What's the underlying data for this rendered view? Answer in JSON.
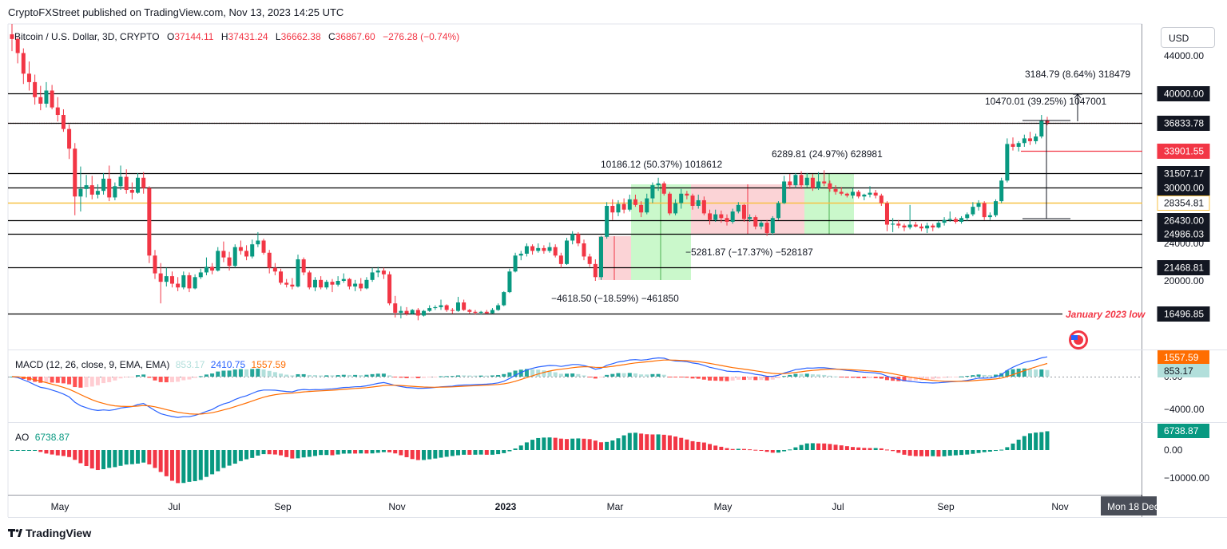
{
  "header": {
    "published": "CryptoFXStreet published on TradingView.com, Nov 13, 2023 14:25 UTC"
  },
  "legend": {
    "symbol": "Bitcoin / U.S. Dollar, 3D, CRYPTO",
    "open_label": "O",
    "open": "37144.11",
    "high_label": "H",
    "high": "37431.24",
    "low_label": "L",
    "low": "36662.38",
    "close_label": "C",
    "close": "36867.60",
    "change": "−276.28 (−0.74%)"
  },
  "currency_button": "USD",
  "macd_legend": {
    "name": "MACD (12, 26, close, 9, EMA, EMA)",
    "hist": "853.17",
    "macd": "2410.75",
    "signal": "1557.59",
    "hist_color": "#b2dfdb",
    "macd_color": "#2962ff",
    "signal_color": "#ff6d00"
  },
  "ao_legend": {
    "name": "AO",
    "value": "6738.87",
    "color": "#089981"
  },
  "footer_brand": "TradingView",
  "colors": {
    "up": "#089981",
    "down": "#f23645",
    "level": "#000000",
    "yellow": "#f7c143",
    "red_level": "#f23645"
  },
  "chart_data": [
    {
      "type": "candlestick",
      "title": "Bitcoin / U.S. Dollar, 3D, CRYPTO",
      "x_ticks": [
        "May",
        "Jul",
        "Sep",
        "Nov",
        "2023",
        "Mar",
        "May",
        "Jul",
        "Sep",
        "Nov"
      ],
      "x_cursor_label": "Mon 18 Dec",
      "y_ticks": [
        44000,
        40000,
        36000,
        32000,
        28000,
        24000,
        20000
      ],
      "y_tick_labels": [
        "44000.00",
        "40000.00",
        "24000.00",
        "20000.00"
      ],
      "ylim": [
        16000,
        46500
      ],
      "horizontal_levels": [
        {
          "value": 40000,
          "label": "40000.00",
          "color": "#000000"
        },
        {
          "value": 36867.6,
          "label": "36867.60",
          "color": "#f23645",
          "dotted": true
        },
        {
          "value": 36833.78,
          "label": "36833.78",
          "color": "#000000"
        },
        {
          "value": 33901.55,
          "label": "33901.55",
          "color": "#f23645"
        },
        {
          "value": 31507.17,
          "label": "31507.17",
          "color": "#000000"
        },
        {
          "value": 30000,
          "label": "30000.00",
          "color": "#000000"
        },
        {
          "value": 28354.81,
          "label": "28354.81",
          "color": "#f7c143"
        },
        {
          "value": 26430,
          "label": "26430.00",
          "color": "#000000"
        },
        {
          "value": 24986.03,
          "label": "24986.03",
          "color": "#000000"
        },
        {
          "value": 21468.81,
          "label": "21468.81",
          "color": "#000000"
        },
        {
          "value": 16496.85,
          "label": "16496.85",
          "color": "#000000",
          "note": "January 2023 low"
        }
      ],
      "measurements": [
        {
          "label": "3184.79 (8.64%) 318479"
        },
        {
          "label": "10470.01 (39.25%) 1047001"
        },
        {
          "label": "10186.12 (50.37%) 1018612"
        },
        {
          "label": "6289.81 (24.97%) 628981"
        },
        {
          "label": "−5281.87 (−17.37%) −528187"
        },
        {
          "label": "−4618.50 (−18.59%) −461850"
        }
      ],
      "candles_ohlc": [
        [
          46300,
          47400,
          44500,
          45800
        ],
        [
          45800,
          46000,
          43200,
          44300
        ],
        [
          44300,
          44800,
          41000,
          42100
        ],
        [
          42100,
          43400,
          40300,
          41200
        ],
        [
          41200,
          42000,
          38800,
          39600
        ],
        [
          39600,
          40800,
          38200,
          38900
        ],
        [
          38900,
          41200,
          38500,
          40300
        ],
        [
          40300,
          40900,
          38300,
          38500
        ],
        [
          38500,
          39600,
          37000,
          37700
        ],
        [
          37700,
          38300,
          35900,
          36200
        ],
        [
          36200,
          36700,
          33000,
          34100
        ],
        [
          34100,
          34700,
          27000,
          29000
        ],
        [
          29000,
          32200,
          27400,
          29800
        ],
        [
          29800,
          31300,
          28900,
          30200
        ],
        [
          30200,
          31200,
          28700,
          29200
        ],
        [
          29200,
          30300,
          28800,
          29600
        ],
        [
          29600,
          31500,
          29200,
          30900
        ],
        [
          30900,
          32300,
          28500,
          28900
        ],
        [
          28900,
          30500,
          28600,
          30100
        ],
        [
          30100,
          32300,
          29700,
          31100
        ],
        [
          31100,
          31900,
          29300,
          29700
        ],
        [
          29700,
          30500,
          28700,
          29400
        ],
        [
          29400,
          31500,
          29300,
          31000
        ],
        [
          31000,
          31600,
          29300,
          29900
        ],
        [
          29900,
          30100,
          21900,
          22700
        ],
        [
          22700,
          23300,
          20200,
          20800
        ],
        [
          20800,
          21900,
          17600,
          19900
        ],
        [
          19900,
          21400,
          19400,
          20500
        ],
        [
          20500,
          21000,
          19300,
          19700
        ],
        [
          19700,
          20400,
          18900,
          19300
        ],
        [
          19300,
          21000,
          19100,
          20600
        ],
        [
          20600,
          20900,
          18800,
          19200
        ],
        [
          19200,
          20700,
          19100,
          20400
        ],
        [
          20400,
          21300,
          20200,
          20900
        ],
        [
          20900,
          22500,
          20600,
          21500
        ],
        [
          21500,
          21900,
          20700,
          21100
        ],
        [
          21100,
          23600,
          21000,
          23200
        ],
        [
          23200,
          24200,
          22000,
          22500
        ],
        [
          22500,
          23100,
          21100,
          21600
        ],
        [
          21600,
          23900,
          21400,
          23600
        ],
        [
          23600,
          24300,
          22800,
          23200
        ],
        [
          23200,
          23800,
          22200,
          22600
        ],
        [
          22600,
          24400,
          22400,
          23900
        ],
        [
          23900,
          25200,
          23600,
          24300
        ],
        [
          24300,
          24500,
          22800,
          23000
        ],
        [
          23000,
          23300,
          20800,
          21400
        ],
        [
          21400,
          21900,
          20600,
          21000
        ],
        [
          21000,
          21300,
          19600,
          19800
        ],
        [
          19800,
          20200,
          19300,
          19600
        ],
        [
          19600,
          20300,
          19100,
          19400
        ],
        [
          19400,
          22800,
          19300,
          22300
        ],
        [
          22300,
          22500,
          20600,
          20900
        ],
        [
          20900,
          21100,
          19100,
          19300
        ],
        [
          19300,
          20400,
          18900,
          20100
        ],
        [
          20100,
          20500,
          19100,
          19300
        ],
        [
          19300,
          20100,
          19100,
          19900
        ],
        [
          19900,
          20200,
          18800,
          19600
        ],
        [
          19600,
          20500,
          19400,
          20000
        ],
        [
          20000,
          20800,
          19800,
          20200
        ],
        [
          20200,
          20300,
          19100,
          19400
        ],
        [
          19400,
          20100,
          18900,
          19700
        ],
        [
          19700,
          20300,
          18900,
          19200
        ],
        [
          19200,
          20400,
          19100,
          20100
        ],
        [
          20100,
          21400,
          19900,
          20900
        ],
        [
          20900,
          21500,
          20400,
          21100
        ],
        [
          21100,
          21400,
          20200,
          20700
        ],
        [
          20700,
          21000,
          17400,
          17600
        ],
        [
          17600,
          18400,
          16100,
          16600
        ],
        [
          16600,
          17300,
          16000,
          16800
        ],
        [
          16800,
          17200,
          16300,
          16500
        ],
        [
          16500,
          17000,
          16400,
          16900
        ],
        [
          16900,
          17100,
          15800,
          16300
        ],
        [
          16300,
          16900,
          16200,
          16800
        ],
        [
          16800,
          17400,
          16700,
          17100
        ],
        [
          17100,
          17400,
          16900,
          17200
        ],
        [
          17200,
          18000,
          16900,
          17400
        ],
        [
          17400,
          17500,
          16700,
          16900
        ],
        [
          16900,
          17100,
          16500,
          16800
        ],
        [
          16800,
          18300,
          16700,
          17700
        ],
        [
          17700,
          18000,
          16800,
          16900
        ],
        [
          16900,
          17000,
          16500,
          16700
        ],
        [
          16700,
          16900,
          16400,
          16600
        ],
        [
          16600,
          16800,
          16400,
          16700
        ],
        [
          16700,
          16900,
          16500,
          16550
        ],
        [
          16550,
          17100,
          16500,
          16900
        ],
        [
          16900,
          17600,
          16800,
          17400
        ],
        [
          17400,
          18900,
          17300,
          18800
        ],
        [
          18800,
          21300,
          18700,
          21000
        ],
        [
          21000,
          23000,
          20900,
          22700
        ],
        [
          22700,
          23200,
          22200,
          22900
        ],
        [
          22900,
          24000,
          22600,
          23700
        ],
        [
          23700,
          23900,
          22800,
          23200
        ],
        [
          23200,
          24000,
          23000,
          23500
        ],
        [
          23500,
          23800,
          22900,
          23200
        ],
        [
          23200,
          24100,
          23000,
          23600
        ],
        [
          23600,
          23900,
          22500,
          22700
        ],
        [
          22700,
          23000,
          21400,
          21800
        ],
        [
          21800,
          24600,
          21700,
          24300
        ],
        [
          24300,
          25300,
          23900,
          25000
        ],
        [
          25000,
          25200,
          23700,
          24000
        ],
        [
          24000,
          24400,
          22200,
          22600
        ],
        [
          22600,
          22900,
          21500,
          21800
        ],
        [
          21800,
          22300,
          20000,
          20400
        ],
        [
          20400,
          24800,
          20100,
          24700
        ],
        [
          24700,
          28400,
          24500,
          28000
        ],
        [
          28000,
          28700,
          26500,
          27300
        ],
        [
          27300,
          28600,
          26900,
          28200
        ],
        [
          28200,
          28800,
          27200,
          27600
        ],
        [
          27600,
          29200,
          27400,
          28700
        ],
        [
          28700,
          29200,
          27900,
          28100
        ],
        [
          28100,
          28500,
          26800,
          27300
        ],
        [
          27300,
          29300,
          27100,
          28800
        ],
        [
          28800,
          30500,
          28300,
          30200
        ],
        [
          30200,
          31000,
          29600,
          30400
        ],
        [
          30400,
          30600,
          29100,
          29300
        ],
        [
          29300,
          29500,
          27000,
          27200
        ],
        [
          27200,
          28700,
          27000,
          28300
        ],
        [
          28300,
          29800,
          27700,
          29300
        ],
        [
          29300,
          29600,
          28700,
          29100
        ],
        [
          29100,
          29300,
          27600,
          28000
        ],
        [
          28000,
          29200,
          27700,
          28600
        ],
        [
          28600,
          29000,
          27000,
          27200
        ],
        [
          27200,
          27600,
          26000,
          26500
        ],
        [
          26500,
          27600,
          26300,
          27100
        ],
        [
          27100,
          27500,
          26200,
          26700
        ],
        [
          26700,
          27100,
          25900,
          26300
        ],
        [
          26300,
          27700,
          26100,
          27400
        ],
        [
          27400,
          28400,
          27200,
          28100
        ],
        [
          28100,
          28200,
          26300,
          26600
        ],
        [
          26600,
          27100,
          26300,
          26800
        ],
        [
          26800,
          27000,
          25500,
          25800
        ],
        [
          25800,
          26400,
          25500,
          26200
        ],
        [
          26200,
          26500,
          24800,
          25100
        ],
        [
          25100,
          26900,
          24900,
          26700
        ],
        [
          26700,
          28500,
          26500,
          28300
        ],
        [
          28300,
          31200,
          28200,
          30600
        ],
        [
          30600,
          31400,
          29800,
          30200
        ],
        [
          30200,
          31500,
          29900,
          31300
        ],
        [
          31300,
          31700,
          29800,
          30200
        ],
        [
          30200,
          31500,
          30000,
          31000
        ],
        [
          31000,
          31400,
          29600,
          29900
        ],
        [
          29900,
          31600,
          29700,
          30600
        ],
        [
          30600,
          31800,
          30100,
          30400
        ],
        [
          30400,
          30700,
          29500,
          29800
        ],
        [
          29800,
          30200,
          29200,
          29500
        ],
        [
          29500,
          30000,
          29100,
          29300
        ],
        [
          29300,
          29400,
          28900,
          29100
        ],
        [
          29100,
          29900,
          28800,
          29500
        ],
        [
          29500,
          29700,
          28800,
          29000
        ],
        [
          29000,
          29300,
          28600,
          29200
        ],
        [
          29200,
          30100,
          28900,
          29400
        ],
        [
          29400,
          29700,
          28800,
          29100
        ],
        [
          29100,
          29300,
          28000,
          28300
        ],
        [
          28300,
          28500,
          25300,
          26000
        ],
        [
          26000,
          26700,
          25200,
          26100
        ],
        [
          26100,
          26500,
          25600,
          25900
        ],
        [
          25900,
          26100,
          25300,
          25700
        ],
        [
          25700,
          28100,
          25500,
          26000
        ],
        [
          26000,
          26300,
          25700,
          25800
        ],
        [
          25800,
          26100,
          25300,
          25600
        ],
        [
          25600,
          26200,
          25100,
          25900
        ],
        [
          25900,
          26100,
          25300,
          25700
        ],
        [
          25700,
          26400,
          25600,
          26200
        ],
        [
          26200,
          26800,
          25900,
          26500
        ],
        [
          26500,
          27400,
          26300,
          26600
        ],
        [
          26600,
          26800,
          26100,
          26300
        ],
        [
          26300,
          26900,
          26100,
          26700
        ],
        [
          26700,
          27300,
          26400,
          27100
        ],
        [
          27100,
          28400,
          26900,
          27900
        ],
        [
          27900,
          28600,
          27500,
          28300
        ],
        [
          28300,
          28500,
          26500,
          26800
        ],
        [
          26800,
          27300,
          26500,
          27000
        ],
        [
          27000,
          28700,
          26800,
          28500
        ],
        [
          28500,
          31000,
          28300,
          30700
        ],
        [
          30700,
          35200,
          30500,
          34600
        ],
        [
          34600,
          35300,
          33900,
          34300
        ],
        [
          34300,
          34900,
          33800,
          34700
        ],
        [
          34700,
          35600,
          34300,
          35200
        ],
        [
          35200,
          35900,
          34500,
          34900
        ],
        [
          34900,
          35700,
          34600,
          35400
        ],
        [
          35400,
          37700,
          35200,
          37100
        ],
        [
          37100,
          37500,
          36600,
          36868
        ]
      ],
      "panels": {
        "macd": {
          "y_ticks": [
            "0.00",
            "−4000.00"
          ],
          "hist_last": 853.17,
          "macd_last": 2410.75,
          "signal_last": 1557.59
        },
        "ao": {
          "y_ticks": [
            "0.00",
            "−10000.00"
          ],
          "last": 6738.87
        }
      }
    }
  ]
}
